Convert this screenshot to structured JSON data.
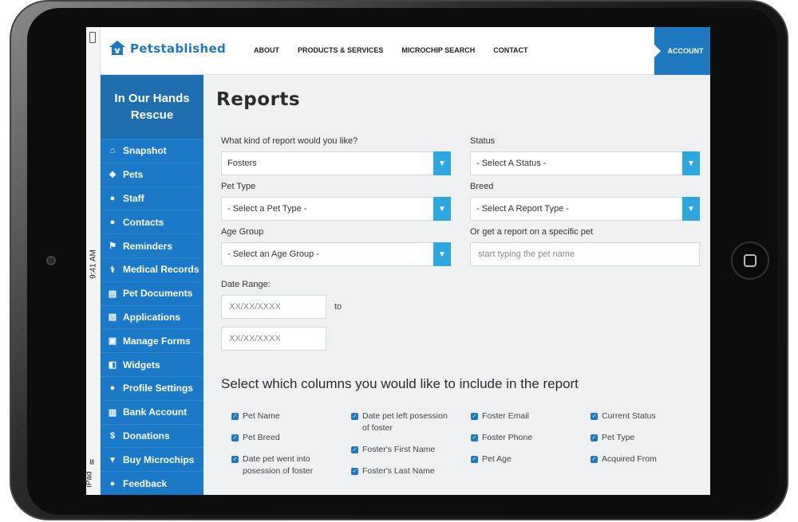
{
  "device": {
    "time": "9:41 AM",
    "label": "iPad"
  },
  "brand": {
    "name": "Petstablished"
  },
  "nav": {
    "links": [
      "About",
      "Products & Services",
      "Microchip Search",
      "Contact"
    ],
    "account": "Account"
  },
  "sidebar": {
    "org_line1": "In Our Hands",
    "org_line2": "Rescue",
    "items": [
      {
        "label": "Snapshot",
        "icon": "home-icon"
      },
      {
        "label": "Pets",
        "icon": "paw-icon"
      },
      {
        "label": "Staff",
        "icon": "users-icon"
      },
      {
        "label": "Contacts",
        "icon": "users-icon"
      },
      {
        "label": "Reminders",
        "icon": "flag-icon"
      },
      {
        "label": "Medical Records",
        "icon": "stethoscope-icon"
      },
      {
        "label": "Pet Documents",
        "icon": "document-icon"
      },
      {
        "label": "Applications",
        "icon": "document-icon"
      },
      {
        "label": "Manage Forms",
        "icon": "forms-icon"
      },
      {
        "label": "Widgets",
        "icon": "share-icon"
      },
      {
        "label": "Profile Settings",
        "icon": "user-icon"
      },
      {
        "label": "Bank Account",
        "icon": "bank-icon"
      },
      {
        "label": "Donations",
        "icon": "dollar-icon"
      },
      {
        "label": "Buy Microchips",
        "icon": "cart-icon"
      },
      {
        "label": "Feedback",
        "icon": "chat-icon"
      }
    ]
  },
  "page": {
    "title": "Reports",
    "report_kind_label": "What kind of report would you like?",
    "report_kind_value": "Fosters",
    "status_label": "Status",
    "status_value": "- Select A Status -",
    "pet_type_label": "Pet Type",
    "pet_type_value": "- Select a Pet Type -",
    "breed_label": "Breed",
    "breed_value": "- Select A Report Type -",
    "age_group_label": "Age Group",
    "age_group_value": "- Select an Age Group -",
    "specific_pet_label": "Or get a report on a specific pet",
    "specific_pet_placeholder": "start typing the pet name",
    "date_range_label": "Date Range:",
    "date_from_placeholder": "XX/XX/XXXX",
    "date_to_placeholder": "XX/XX/XXXX",
    "to_label": "to",
    "columns_heading": "Select which columns you would like to include in the report",
    "columns": [
      {
        "label": "Pet Name",
        "checked": true
      },
      {
        "label": "Pet Breed",
        "checked": true
      },
      {
        "label": "Date pet went into posession of foster",
        "checked": true
      },
      {
        "label": "Date pet left posession of foster",
        "checked": true
      },
      {
        "label": "Foster's First Name",
        "checked": true
      },
      {
        "label": "Foster's Last Name",
        "checked": true
      },
      {
        "label": "Foster Email",
        "checked": true
      },
      {
        "label": "Foster Phone",
        "checked": true
      },
      {
        "label": "Pet Age",
        "checked": true
      },
      {
        "label": "Current Status",
        "checked": true
      },
      {
        "label": "Pet Type",
        "checked": true
      },
      {
        "label": "Acquired From",
        "checked": true
      }
    ]
  },
  "colors": {
    "brand_blue": "#1f79c0",
    "sidebar_blue": "#1a7ac7",
    "arrow_blue": "#2aa8df"
  }
}
